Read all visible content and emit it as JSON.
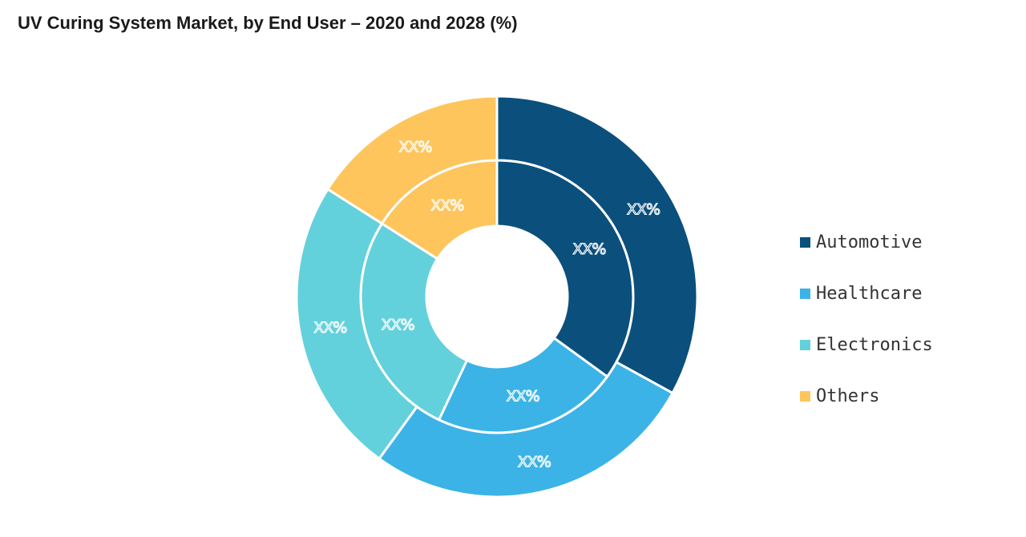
{
  "chart_data": {
    "type": "pie",
    "variant": "nested-donut",
    "title": "UV Curing System Market, by End User – 2020 and 2028 (%)",
    "categories": [
      "Automotive",
      "Healthcare",
      "Electronics",
      "Others"
    ],
    "colors": [
      "#0b4f7c",
      "#3bb3e6",
      "#63d1dc",
      "#fdc55c"
    ],
    "series": [
      {
        "name": "2020",
        "ring": "inner",
        "values": [
          35,
          22,
          27,
          16
        ],
        "labels": [
          "XX%",
          "XX%",
          "XX%",
          "XX%"
        ]
      },
      {
        "name": "2028",
        "ring": "outer",
        "values": [
          33,
          27,
          24,
          16
        ],
        "labels": [
          "XX%",
          "XX%",
          "XX%",
          "XX%"
        ]
      }
    ],
    "legend_position": "right"
  }
}
